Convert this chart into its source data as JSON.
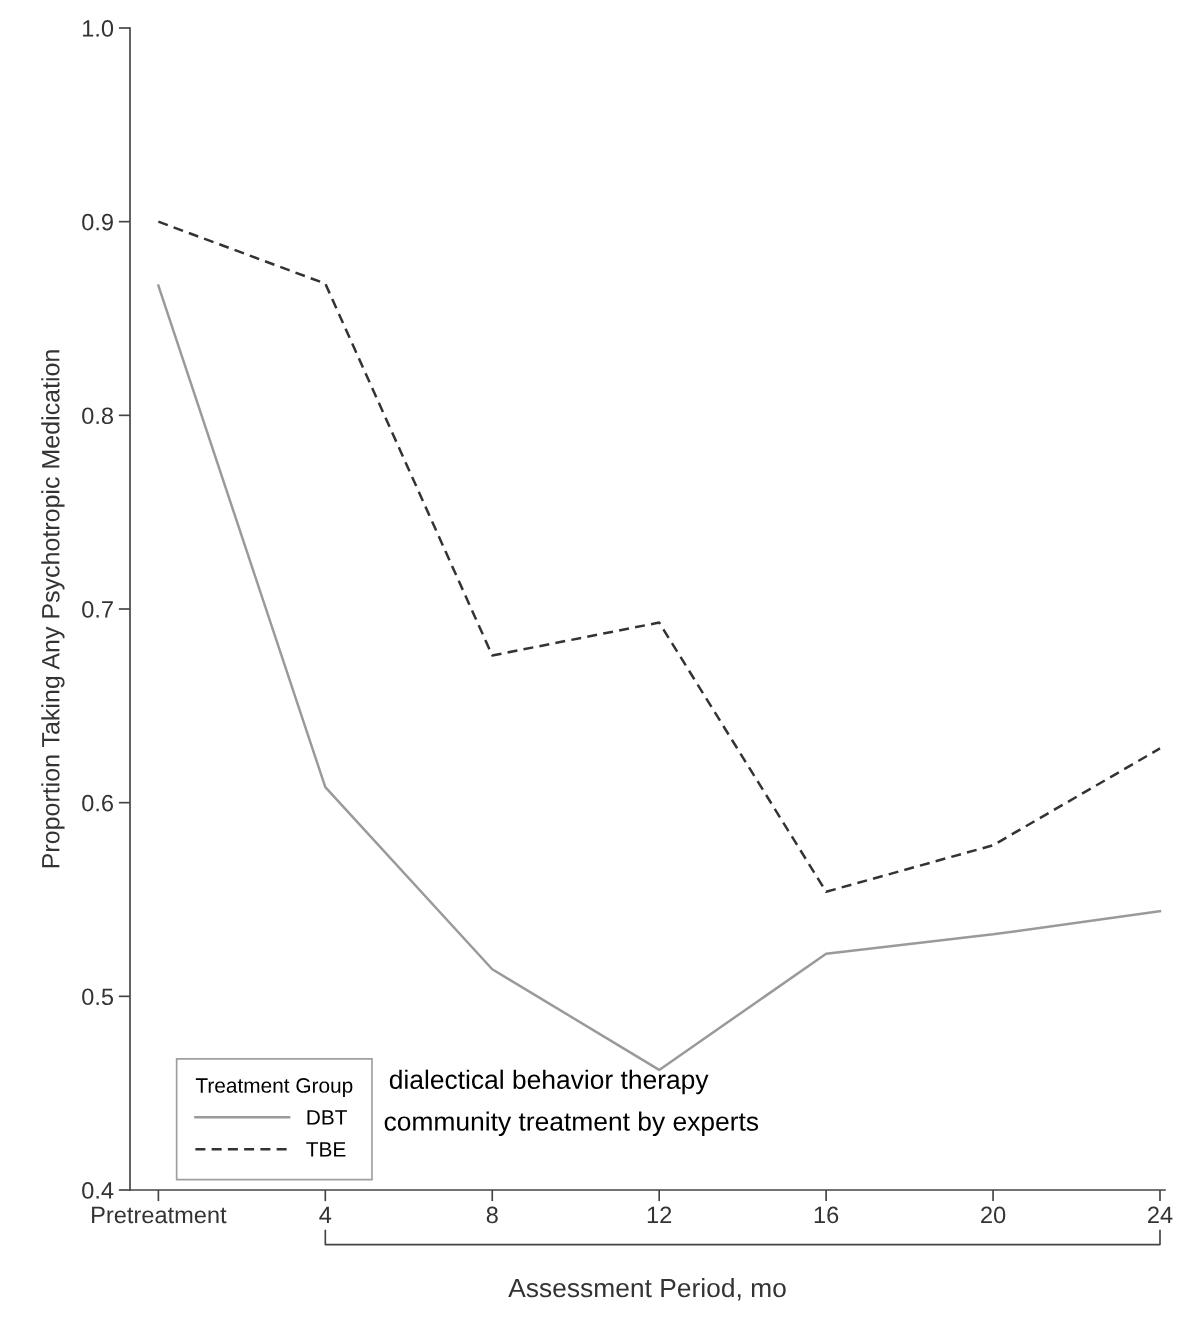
{
  "chart_data": {
    "type": "line",
    "ylabel": "Proportion Taking Any Psychotropic Medication",
    "xlabel": "Assessment Period, mo",
    "legend_title": "Treatment Group",
    "categories": [
      "Pretreatment",
      "4",
      "8",
      "12",
      "16",
      "20",
      "24"
    ],
    "series": [
      {
        "name": "DBT",
        "color": "#9a9a9a",
        "line_style": "solid",
        "values": [
          0.867,
          0.608,
          0.514,
          0.462,
          0.522,
          0.532,
          0.544
        ]
      },
      {
        "name": "TBE",
        "color": "#333333",
        "line_style": "dashed",
        "values": [
          0.9,
          0.868,
          0.676,
          0.693,
          0.554,
          0.578,
          0.628
        ]
      }
    ],
    "ylim": [
      0.4,
      1.0
    ],
    "yticks": [
      {
        "value": 0.4,
        "label": "0.4"
      },
      {
        "value": 0.5,
        "label": "0.5"
      },
      {
        "value": 0.6,
        "label": "0.6"
      },
      {
        "value": 0.7,
        "label": "0.7"
      },
      {
        "value": 0.8,
        "label": "0.8"
      },
      {
        "value": 0.9,
        "label": "0.9"
      },
      {
        "value": 1.0,
        "label": "1.0"
      }
    ],
    "grid": false,
    "legend": "bottom left",
    "marker": "none",
    "annotations": [
      "dialectical behavior therapy",
      "community treatment by experts"
    ]
  }
}
